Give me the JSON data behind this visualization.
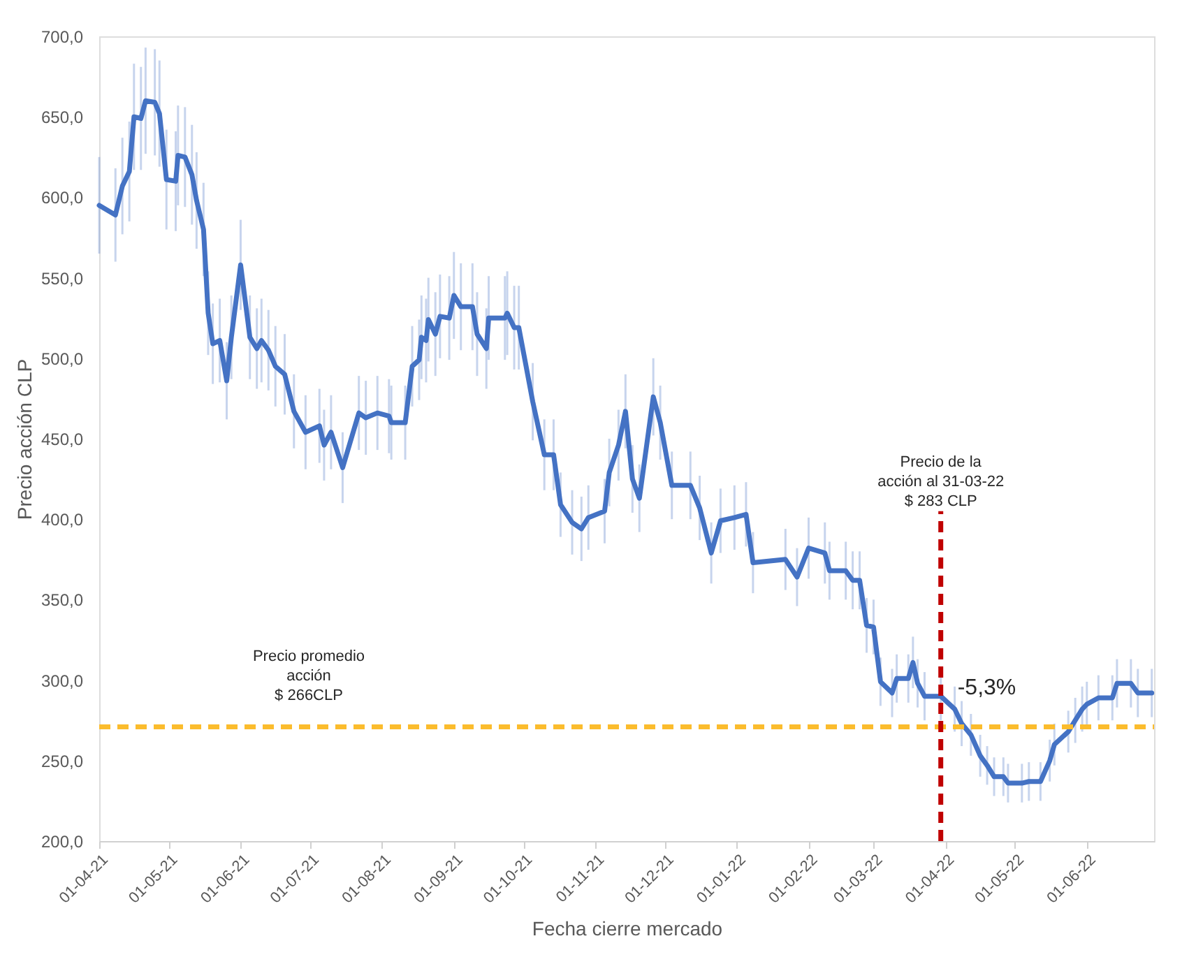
{
  "chart_data": {
    "type": "line",
    "xlabel": "Fecha cierre mercado",
    "ylabel": "Precio acción CLP",
    "x": [
      "2021-04-01",
      "2021-04-08",
      "2021-04-11",
      "2021-04-14",
      "2021-04-16",
      "2021-04-19",
      "2021-04-21",
      "2021-04-25",
      "2021-04-27",
      "2021-04-30",
      "2021-05-04",
      "2021-05-05",
      "2021-05-08",
      "2021-05-11",
      "2021-05-13",
      "2021-05-16",
      "2021-05-18",
      "2021-05-20",
      "2021-05-23",
      "2021-05-26",
      "2021-05-28",
      "2021-06-01",
      "2021-06-05",
      "2021-06-08",
      "2021-06-10",
      "2021-06-13",
      "2021-06-16",
      "2021-06-20",
      "2021-06-24",
      "2021-06-29",
      "2021-07-05",
      "2021-07-07",
      "2021-07-10",
      "2021-07-15",
      "2021-07-22",
      "2021-07-25",
      "2021-07-30",
      "2021-08-04",
      "2021-08-05",
      "2021-08-11",
      "2021-08-14",
      "2021-08-17",
      "2021-08-18",
      "2021-08-20",
      "2021-08-21",
      "2021-08-24",
      "2021-08-26",
      "2021-08-30",
      "2021-09-01",
      "2021-09-04",
      "2021-09-09",
      "2021-09-11",
      "2021-09-15",
      "2021-09-16",
      "2021-09-23",
      "2021-09-24",
      "2021-09-27",
      "2021-09-29",
      "2021-10-05",
      "2021-10-10",
      "2021-10-14",
      "2021-10-17",
      "2021-10-22",
      "2021-10-26",
      "2021-10-29",
      "2021-11-05",
      "2021-11-07",
      "2021-11-11",
      "2021-11-14",
      "2021-11-17",
      "2021-11-20",
      "2021-11-26",
      "2021-11-29",
      "2021-12-04",
      "2021-12-12",
      "2021-12-16",
      "2021-12-21",
      "2021-12-25",
      "2021-12-31",
      "2022-01-05",
      "2022-01-08",
      "2022-01-22",
      "2022-01-27",
      "2022-02-01",
      "2022-02-08",
      "2022-02-10",
      "2022-02-17",
      "2022-02-20",
      "2022-02-23",
      "2022-02-26",
      "2022-03-01",
      "2022-03-04",
      "2022-03-09",
      "2022-03-11",
      "2022-03-16",
      "2022-03-18",
      "2022-03-20",
      "2022-03-23",
      "2022-03-30",
      "2022-04-05",
      "2022-04-08",
      "2022-04-12",
      "2022-04-16",
      "2022-04-19",
      "2022-04-22",
      "2022-04-26",
      "2022-04-28",
      "2022-05-04",
      "2022-05-07",
      "2022-05-12",
      "2022-05-16",
      "2022-05-18",
      "2022-05-24",
      "2022-05-27",
      "2022-05-30",
      "2022-06-01",
      "2022-06-06",
      "2022-06-12",
      "2022-06-14",
      "2022-06-20",
      "2022-06-23",
      "2022-06-29"
    ],
    "series": [
      {
        "color": "#4472c4",
        "values": [
          595,
          589,
          607,
          616,
          650,
          649,
          660,
          659,
          652,
          611,
          610,
          626,
          625,
          614,
          598,
          580,
          528,
          509,
          511,
          486,
          513,
          558,
          513,
          506,
          511,
          505,
          495,
          490,
          467,
          454,
          458,
          446,
          454,
          432,
          466,
          463,
          466,
          464,
          460,
          460,
          495,
          499,
          513,
          511,
          524,
          515,
          526,
          525,
          539,
          532,
          532,
          515,
          506,
          525,
          525,
          528,
          519,
          519,
          473,
          440,
          440,
          409,
          398,
          394,
          401,
          405,
          429,
          446,
          467,
          425,
          413,
          476,
          460,
          421,
          421,
          407,
          379,
          399,
          401,
          403,
          373,
          375,
          364,
          382,
          379,
          368,
          368,
          362,
          362,
          334,
          333,
          299,
          292,
          301,
          301,
          311,
          298,
          290,
          290,
          282,
          273,
          266,
          253,
          247,
          240,
          240,
          236,
          236,
          237,
          237,
          250,
          260,
          268,
          275,
          282,
          285,
          289,
          289,
          298,
          298,
          292,
          292
        ],
        "errors": [
          30,
          29,
          30,
          31,
          33,
          32,
          33,
          33,
          33,
          31,
          31,
          31,
          31,
          31,
          30,
          29,
          26,
          25,
          26,
          24,
          26,
          28,
          26,
          25,
          26,
          25,
          25,
          25,
          23,
          23,
          23,
          22,
          23,
          22,
          23,
          23,
          23,
          23,
          23,
          23,
          25,
          25,
          26,
          26,
          26,
          26,
          26,
          26,
          27,
          27,
          27,
          26,
          25,
          26,
          26,
          26,
          26,
          26,
          24,
          22,
          22,
          20,
          20,
          20,
          20,
          20,
          21,
          22,
          23,
          21,
          21,
          24,
          23,
          21,
          21,
          20,
          19,
          20,
          20,
          20,
          19,
          19,
          18,
          19,
          19,
          18,
          18,
          18,
          18,
          17,
          17,
          15,
          15,
          15,
          15,
          16,
          15,
          15,
          15,
          14,
          14,
          13,
          13,
          12,
          12,
          12,
          12,
          12,
          12,
          12,
          13,
          13,
          13,
          14,
          14,
          14,
          14,
          14,
          15,
          15,
          15,
          15
        ]
      }
    ],
    "xlim": [
      "2021-04-01",
      "2022-06-30"
    ],
    "xticks": [
      {
        "value": "2021-04-01",
        "label": "01-04-21"
      },
      {
        "value": "2021-05-01",
        "label": "01-05-21"
      },
      {
        "value": "2021-06-01",
        "label": "01-06-21"
      },
      {
        "value": "2021-07-01",
        "label": "01-07-21"
      },
      {
        "value": "2021-08-01",
        "label": "01-08-21"
      },
      {
        "value": "2021-09-01",
        "label": "01-09-21"
      },
      {
        "value": "2021-10-01",
        "label": "01-10-21"
      },
      {
        "value": "2021-11-01",
        "label": "01-11-21"
      },
      {
        "value": "2021-12-01",
        "label": "01-12-21"
      },
      {
        "value": "2022-01-01",
        "label": "01-01-22"
      },
      {
        "value": "2022-02-01",
        "label": "01-02-22"
      },
      {
        "value": "2022-03-01",
        "label": "01-03-22"
      },
      {
        "value": "2022-04-01",
        "label": "01-04-22"
      },
      {
        "value": "2022-05-01",
        "label": "01-05-22"
      },
      {
        "value": "2022-06-01",
        "label": "01-06-22"
      }
    ],
    "ylim": [
      200,
      700
    ],
    "yticks": [
      {
        "value": 200,
        "label": "200,0"
      },
      {
        "value": 250,
        "label": "250,0"
      },
      {
        "value": 300,
        "label": "300,0"
      },
      {
        "value": 350,
        "label": "350,0"
      },
      {
        "value": 400,
        "label": "400,0"
      },
      {
        "value": 450,
        "label": "450,0"
      },
      {
        "value": 500,
        "label": "500,0"
      },
      {
        "value": 550,
        "label": "550,0"
      },
      {
        "value": 600,
        "label": "600,0"
      },
      {
        "value": 650,
        "label": "650,0"
      },
      {
        "value": 700,
        "label": "700,0"
      }
    ],
    "ref_lines": [
      {
        "axis": "y",
        "value": 271,
        "color": "#fbbc2d",
        "line_style": "dashed",
        "label": "Precio promedio\nacción\n$ 266CLP"
      },
      {
        "axis": "x",
        "value": "2022-03-30",
        "color": "#c00000",
        "line_style": "dashed",
        "label": "Precio de la\nacción al 31-03-22\n$ 283 CLP"
      }
    ],
    "annotations": [
      "-5,3%"
    ],
    "grid": false,
    "marker": "none",
    "line_style": "solid"
  }
}
